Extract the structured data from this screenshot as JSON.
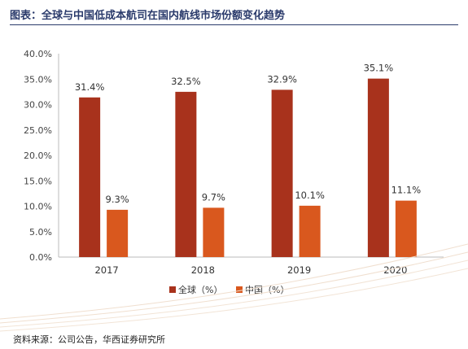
{
  "title": "图表：全球与中国低成本航司在国内航线市场份额变化趋势",
  "source": "资料来源：公司公告，华西证券研究所",
  "colors": {
    "global": "#a8321c",
    "china": "#d9581e",
    "title": "#2a3a6b"
  },
  "chart_data": {
    "type": "bar",
    "categories": [
      "2017",
      "2018",
      "2019",
      "2020"
    ],
    "series": [
      {
        "name": "全球（%）",
        "values": [
          31.4,
          32.5,
          32.9,
          35.1
        ],
        "labels": [
          "31.4%",
          "32.5%",
          "32.9%",
          "35.1%"
        ]
      },
      {
        "name": "中国（%）",
        "values": [
          9.3,
          9.7,
          10.1,
          11.1
        ],
        "labels": [
          "9.3%",
          "9.7%",
          "10.1%",
          "11.1%"
        ]
      }
    ],
    "ylim": [
      0,
      40
    ],
    "yticks": [
      "0.0%",
      "5.0%",
      "10.0%",
      "15.0%",
      "20.0%",
      "25.0%",
      "30.0%",
      "35.0%",
      "40.0%"
    ],
    "grid": false,
    "legend": "bottom-center",
    "data_labels": true
  }
}
